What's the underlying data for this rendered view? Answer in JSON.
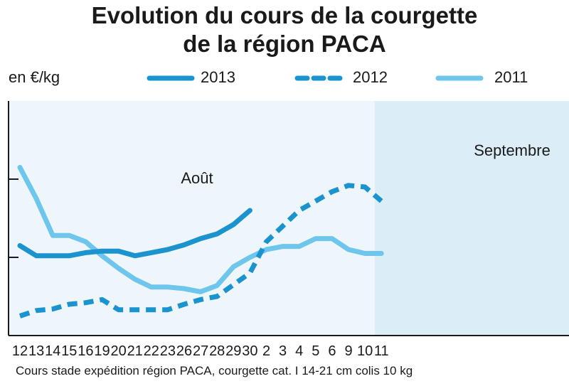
{
  "header": {
    "title_line1": "Evolution du cours de la courgette",
    "title_line2": "de la région PACA",
    "unit": "en €/kg"
  },
  "footnote": "Cours stade expédition région PACA, courgette cat. I 14-21 cm colis 10 kg",
  "chart_data": {
    "type": "line",
    "title": "Evolution du cours de la courgette de la région PACA",
    "ylabel": "en €/kg",
    "xlabel": "",
    "categories": [
      "12",
      "13",
      "14",
      "15",
      "16",
      "19",
      "20",
      "21",
      "22",
      "23",
      "26",
      "27",
      "28",
      "29",
      "30",
      "2",
      "3",
      "4",
      "5",
      "6",
      "9",
      "10",
      "11"
    ],
    "months": [
      {
        "label": "Août",
        "from": 0,
        "to": 14
      },
      {
        "label": "Septembre",
        "from": 15,
        "to": 22
      }
    ],
    "ylim": [
      0,
      3
    ],
    "y_ticks": [
      1,
      2
    ],
    "series": [
      {
        "name": "2013",
        "style": "solid",
        "color": "#1a93cf",
        "values": [
          1.15,
          1.02,
          1.02,
          1.02,
          1.06,
          1.08,
          1.08,
          1.02,
          1.06,
          1.1,
          1.16,
          1.24,
          1.3,
          1.42,
          1.6,
          null,
          null,
          null,
          null,
          null,
          null,
          null,
          null
        ]
      },
      {
        "name": "2012",
        "style": "dashed",
        "color": "#1a93cf",
        "values": [
          0.25,
          0.32,
          0.34,
          0.4,
          0.42,
          0.46,
          0.33,
          0.33,
          0.33,
          0.33,
          0.4,
          0.46,
          0.5,
          0.65,
          0.8,
          1.2,
          1.4,
          1.6,
          1.72,
          1.84,
          1.92,
          1.9,
          1.72
        ]
      },
      {
        "name": "2011",
        "style": "solid",
        "color": "#6ec6ec",
        "values": [
          2.15,
          1.75,
          1.28,
          1.28,
          1.2,
          1.02,
          0.86,
          0.72,
          0.62,
          0.62,
          0.6,
          0.56,
          0.64,
          0.88,
          1.0,
          1.1,
          1.14,
          1.14,
          1.24,
          1.24,
          1.1,
          1.05,
          1.05
        ]
      }
    ],
    "grid": false,
    "legend_position": "top"
  }
}
